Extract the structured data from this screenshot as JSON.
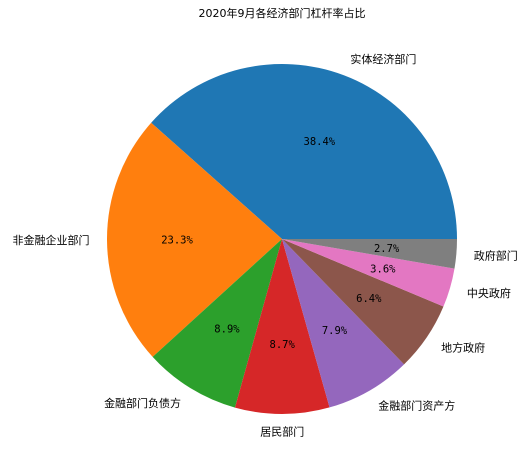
{
  "chart_data": {
    "type": "pie",
    "title": "2020年9月各经济部门杠杆率占比",
    "slices": [
      {
        "label": "实体经济部门",
        "value": 38.4,
        "pct_label": "38.4%",
        "color": "#1f77b4"
      },
      {
        "label": "非金融企业部门",
        "value": 23.3,
        "pct_label": "23.3%",
        "color": "#ff7f0e"
      },
      {
        "label": "金融部门负债方",
        "value": 8.9,
        "pct_label": "8.9%",
        "color": "#2ca02c"
      },
      {
        "label": "居民部门",
        "value": 8.7,
        "pct_label": "8.7%",
        "color": "#d62728"
      },
      {
        "label": "金融部门资产方",
        "value": 7.9,
        "pct_label": "7.9%",
        "color": "#9467bd"
      },
      {
        "label": "地方政府",
        "value": 6.4,
        "pct_label": "6.4%",
        "color": "#8c564b"
      },
      {
        "label": "中央政府",
        "value": 3.6,
        "pct_label": "3.6%",
        "color": "#e377c2"
      },
      {
        "label": "政府部门",
        "value": 2.7,
        "pct_label": "2.7%",
        "color": "#7f7f7f"
      }
    ],
    "start_angle_deg": 0,
    "direction": "counterclockwise"
  }
}
